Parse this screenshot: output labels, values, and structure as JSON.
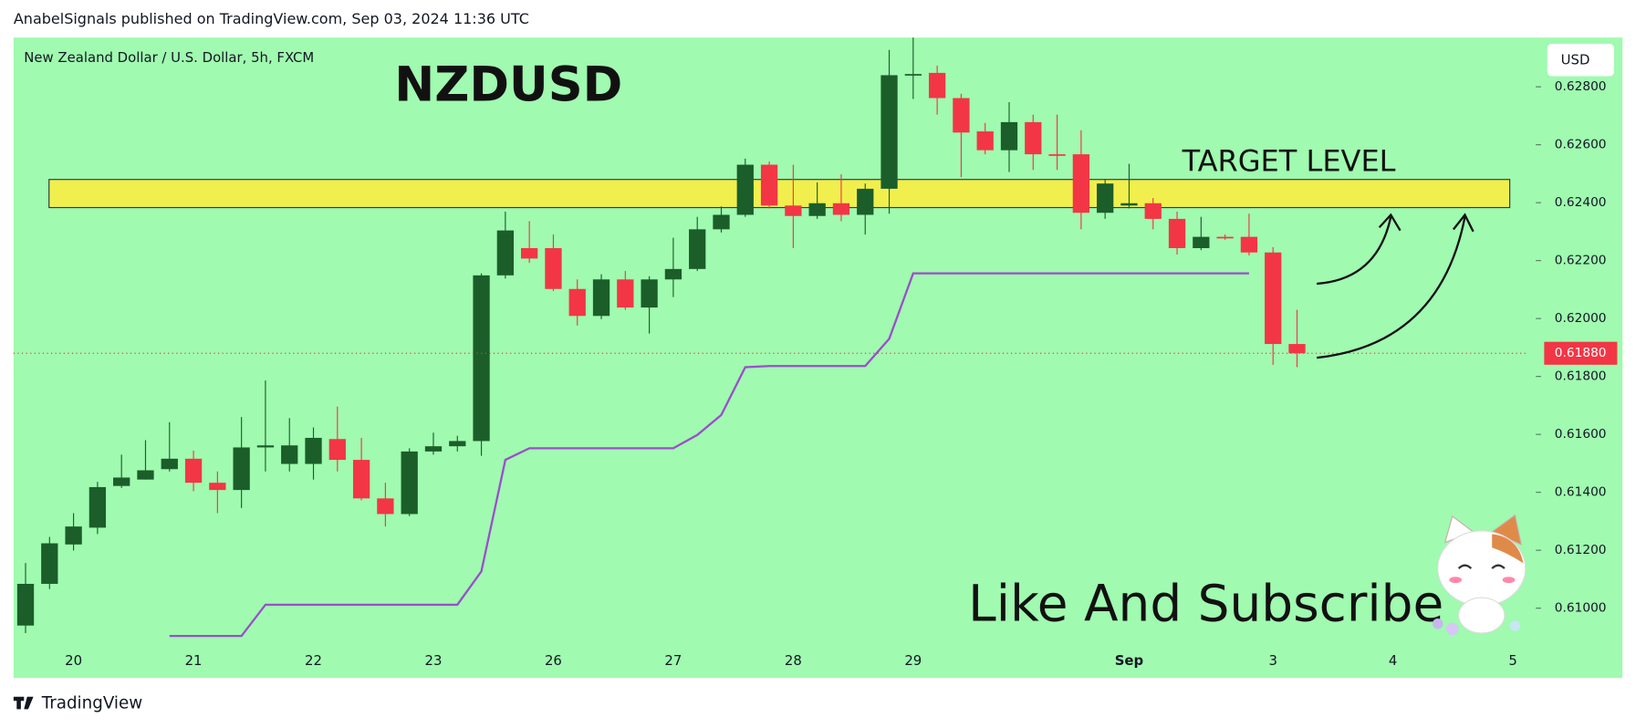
{
  "header": "AnabelSignals published on TradingView.com, Sep 03, 2024 11:36 UTC",
  "footer": "TradingView",
  "chart_data": {
    "type": "candlestick",
    "title": "NZDUSD",
    "subtitle": "New Zealand Dollar / U.S. Dollar, 5h, FXCM",
    "currency": "USD",
    "annotations": [
      "Like And Subscribe"
    ],
    "background": "#a0fab0",
    "up_color": "#1b5e2a",
    "down_color": "#f23645",
    "open": [
      0.6094,
      0.61084,
      0.6122,
      0.61278,
      0.61422,
      0.61444,
      0.6148,
      0.61516,
      0.61433,
      0.61408,
      0.61555,
      0.61498,
      0.61498,
      0.61584,
      0.61512,
      0.61379,
      0.61325,
      0.61541,
      0.61559,
      0.61577,
      0.62149,
      0.62243,
      0.62243,
      0.62102,
      0.62009,
      0.62135,
      0.62038,
      0.62135,
      0.62171,
      0.62308,
      0.62358,
      0.62531,
      0.6239,
      0.62354,
      0.62398,
      0.62358,
      0.62448,
      0.6284,
      0.62848,
      0.62761,
      0.62646,
      0.62581,
      0.62678,
      0.62567,
      0.62567,
      0.62365,
      0.6239,
      0.62398,
      0.62344,
      0.62243,
      0.62282,
      0.62282,
      0.62228,
      0.61912
    ],
    "high": [
      0.61156,
      0.61246,
      0.61328,
      0.61436,
      0.6153,
      0.6158,
      0.61642,
      0.61544,
      0.61472,
      0.6166,
      0.61786,
      0.61656,
      0.61624,
      0.61696,
      0.61588,
      0.61433,
      0.61552,
      0.61606,
      0.61595,
      0.62156,
      0.62369,
      0.62336,
      0.6229,
      0.62135,
      0.62153,
      0.62164,
      0.62146,
      0.62279,
      0.62351,
      0.62387,
      0.62552,
      0.62542,
      0.62531,
      0.6247,
      0.62498,
      0.62466,
      0.62927,
      0.6297,
      0.62873,
      0.62776,
      0.62675,
      0.62747,
      0.62704,
      0.62704,
      0.6265,
      0.6248,
      0.62534,
      0.62416,
      0.62369,
      0.62351,
      0.6229,
      0.62362,
      0.62246,
      0.6203
    ],
    "low": [
      0.60914,
      0.61066,
      0.61199,
      0.61256,
      0.61415,
      0.61444,
      0.61472,
      0.61404,
      0.61328,
      0.61346,
      0.61472,
      0.61472,
      0.61444,
      0.61472,
      0.61372,
      0.61282,
      0.61318,
      0.6153,
      0.61541,
      0.61526,
      0.62138,
      0.62192,
      0.62095,
      0.61976,
      0.61998,
      0.6203,
      0.61948,
      0.62074,
      0.62164,
      0.62297,
      0.62351,
      0.6238,
      0.62243,
      0.62344,
      0.62336,
      0.6229,
      0.62362,
      0.62758,
      0.62704,
      0.62488,
      0.62567,
      0.62506,
      0.62513,
      0.62513,
      0.62308,
      0.62344,
      0.6238,
      0.62308,
      0.62221,
      0.62236,
      0.62272,
      0.62218,
      0.6184,
      0.61832
    ],
    "close": [
      0.61084,
      0.61224,
      0.61282,
      0.61418,
      0.61451,
      0.61476,
      0.61516,
      0.61433,
      0.61408,
      0.61555,
      0.61562,
      0.61562,
      0.61588,
      0.61512,
      0.61379,
      0.61325,
      0.61541,
      0.61559,
      0.61577,
      0.62149,
      0.62304,
      0.62207,
      0.62102,
      0.62009,
      0.62135,
      0.62038,
      0.62135,
      0.62171,
      0.62308,
      0.62358,
      0.62531,
      0.6239,
      0.62354,
      0.62398,
      0.62358,
      0.62448,
      0.6284,
      0.62844,
      0.62761,
      0.62642,
      0.62581,
      0.62678,
      0.62567,
      0.62563,
      0.62365,
      0.62466,
      0.62398,
      0.62344,
      0.62243,
      0.62282,
      0.62279,
      0.62228,
      0.61912,
      0.6188
    ],
    "indicator": {
      "color": "#9b4dca",
      "values": [
        null,
        null,
        null,
        null,
        null,
        null,
        0.60904,
        0.60904,
        0.60904,
        0.60904,
        0.61012,
        0.61012,
        0.61012,
        0.61012,
        0.61012,
        0.61012,
        0.61012,
        0.61012,
        0.61012,
        0.61127,
        0.61512,
        0.61552,
        0.61552,
        0.61552,
        0.61552,
        0.61552,
        0.61552,
        0.61552,
        0.61598,
        0.61667,
        0.61832,
        0.61836,
        0.61836,
        0.61836,
        0.61836,
        0.61836,
        0.6193,
        0.62156,
        0.62156,
        0.62156,
        0.62156,
        0.62156,
        0.62156,
        0.62156,
        0.62156,
        0.62156,
        0.62156,
        0.62156,
        0.62156,
        0.62156,
        0.62156,
        0.62156,
        null,
        null
      ]
    },
    "target_zone": {
      "label": "TARGET LEVEL",
      "top": 0.6248,
      "bottom": 0.62383,
      "color": "#ffec3d"
    },
    "last_price": {
      "value": 0.6188,
      "label": "0.61880",
      "color": "#f23645"
    },
    "xlim": [
      -0.5,
      62.65
    ],
    "xticks": [
      {
        "value": 2,
        "label": "20"
      },
      {
        "value": 7,
        "label": "21"
      },
      {
        "value": 12,
        "label": "22"
      },
      {
        "value": 17,
        "label": "23"
      },
      {
        "value": 22,
        "label": "26"
      },
      {
        "value": 27,
        "label": "27"
      },
      {
        "value": 32,
        "label": "28"
      },
      {
        "value": 37,
        "label": "29"
      },
      {
        "value": 46,
        "label": "Sep"
      },
      {
        "value": 52,
        "label": "3"
      },
      {
        "value": 57,
        "label": "4"
      },
      {
        "value": 62,
        "label": "5"
      }
    ],
    "ylim": [
      0.6086,
      0.6297
    ],
    "yticks": [
      {
        "value": 0.61,
        "label": "0.61000"
      },
      {
        "value": 0.612,
        "label": "0.61200"
      },
      {
        "value": 0.614,
        "label": "0.61400"
      },
      {
        "value": 0.616,
        "label": "0.61600"
      },
      {
        "value": 0.618,
        "label": "0.61800"
      },
      {
        "value": 0.62,
        "label": "0.62000"
      },
      {
        "value": 0.622,
        "label": "0.62200"
      },
      {
        "value": 0.624,
        "label": "0.62400"
      },
      {
        "value": 0.626,
        "label": "0.62600"
      },
      {
        "value": 0.628,
        "label": "0.62800"
      }
    ]
  }
}
